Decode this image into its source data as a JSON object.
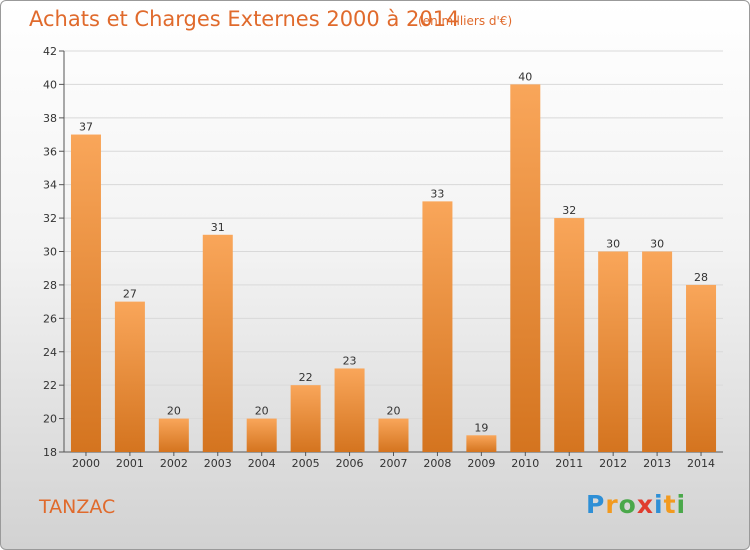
{
  "header": {
    "title": "Achats et Charges Externes 2000 à 2014",
    "subtitle": "(en milliers d'€)"
  },
  "footer": {
    "commune": "TANZAC",
    "logo_text": "Proxiti",
    "logo_letters": [
      {
        "ch": "P",
        "color": "#2e8fd6"
      },
      {
        "ch": "r",
        "color": "#f29a1f"
      },
      {
        "ch": "o",
        "color": "#4aa84a"
      },
      {
        "ch": "x",
        "color": "#e03c2e"
      },
      {
        "ch": "i",
        "color": "#2e8fd6"
      },
      {
        "ch": "t",
        "color": "#f29a1f"
      },
      {
        "ch": "i",
        "color": "#4aa84a"
      }
    ]
  },
  "colors": {
    "accent": "#e06a2c",
    "bar_light": "#f9a65a",
    "bar_dark": "#d4741f",
    "grid": "#d9d9d9"
  },
  "chart_data": {
    "type": "bar",
    "categories": [
      "2000",
      "2001",
      "2002",
      "2003",
      "2004",
      "2005",
      "2006",
      "2007",
      "2008",
      "2009",
      "2010",
      "2011",
      "2012",
      "2013",
      "2014"
    ],
    "values": [
      37,
      27,
      20,
      31,
      20,
      22,
      23,
      20,
      33,
      19,
      40,
      32,
      30,
      30,
      28
    ],
    "ylim": [
      18,
      42
    ],
    "yticks": [
      18,
      20,
      22,
      24,
      26,
      28,
      30,
      32,
      34,
      36,
      38,
      40,
      42
    ],
    "grid": true,
    "data_labels": true
  }
}
